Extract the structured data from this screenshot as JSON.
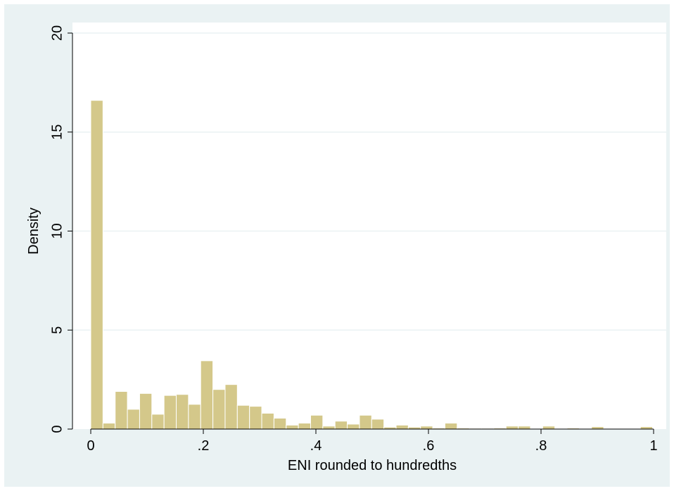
{
  "chart_data": {
    "type": "bar",
    "title": "",
    "xlabel": "ENI rounded to hundredths",
    "ylabel": "Density",
    "xlim": [
      0,
      1
    ],
    "ylim": [
      0,
      20
    ],
    "x_ticks": [
      {
        "value": 0,
        "label": "0"
      },
      {
        "value": 0.2,
        "label": ".2"
      },
      {
        "value": 0.4,
        "label": ".4"
      },
      {
        "value": 0.6,
        "label": ".6"
      },
      {
        "value": 0.8,
        "label": ".8"
      },
      {
        "value": 1,
        "label": "1"
      }
    ],
    "y_ticks": [
      {
        "value": 0,
        "label": "0"
      },
      {
        "value": 5,
        "label": "5"
      },
      {
        "value": 10,
        "label": "10"
      },
      {
        "value": 15,
        "label": "15"
      },
      {
        "value": 20,
        "label": "20"
      }
    ],
    "grid": "horizontal",
    "bin_width": 0.0217,
    "bin_start": 0,
    "values": [
      16.6,
      0.3,
      1.9,
      1.0,
      1.8,
      0.75,
      1.7,
      1.75,
      1.25,
      3.45,
      2.0,
      2.25,
      1.2,
      1.15,
      0.8,
      0.55,
      0.2,
      0.3,
      0.7,
      0.15,
      0.4,
      0.25,
      0.7,
      0.5,
      0.1,
      0.2,
      0.1,
      0.15,
      0.05,
      0.3,
      0.05,
      0.04,
      0.04,
      0.05,
      0.15,
      0.15,
      0.03,
      0.15,
      0.02,
      0.05,
      0.03,
      0.12,
      0.03,
      0.03,
      0.03,
      0.12
    ],
    "colors": {
      "bar_fill": "#d4c88a",
      "bar_stroke": "#ffffff",
      "outer_background": "#eaf2f3",
      "plot_background": "#ffffff",
      "grid": "#eaf2f3",
      "axis": "#000000"
    }
  }
}
